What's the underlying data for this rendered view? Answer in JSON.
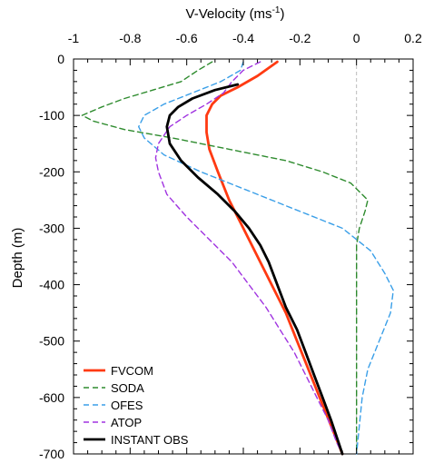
{
  "chart_data": {
    "type": "line",
    "title": "",
    "xlabel": "V-Velocity (ms",
    "xlabel_superscript": "-1",
    "xlabel_suffix": ")",
    "ylabel": "Depth (m)",
    "xlim": [
      -1.0,
      0.2
    ],
    "ylim": [
      -700,
      0
    ],
    "x_axis_position": "top",
    "x_ticks": [
      -1,
      -0.8,
      -0.6,
      -0.4,
      -0.2,
      0,
      0.2
    ],
    "x_tick_labels": [
      "-1",
      "-0.8",
      "-0.6",
      "-0.4",
      "-0.2",
      "0",
      "0.2"
    ],
    "y_ticks": [
      0,
      -100,
      -200,
      -300,
      -400,
      -500,
      -600,
      -700
    ],
    "y_tick_labels": [
      "0",
      "-100",
      "-200",
      "-300",
      "-400",
      "-500",
      "-600",
      "-700"
    ],
    "zero_reference_line": {
      "x": 0,
      "color": "#bbbbbb",
      "dashed": true
    },
    "grid": false,
    "legend_position": "bottom-left",
    "series": [
      {
        "name": "FVCOM",
        "color": "#ff3a12",
        "dashed": false,
        "points": [
          [
            -0.28,
            -5
          ],
          [
            -0.35,
            -30
          ],
          [
            -0.42,
            -50
          ],
          [
            -0.48,
            -65
          ],
          [
            -0.51,
            -80
          ],
          [
            -0.53,
            -100
          ],
          [
            -0.53,
            -130
          ],
          [
            -0.52,
            -160
          ],
          [
            -0.49,
            -200
          ],
          [
            -0.45,
            -250
          ],
          [
            -0.4,
            -300
          ],
          [
            -0.35,
            -350
          ],
          [
            -0.3,
            -400
          ],
          [
            -0.25,
            -450
          ],
          [
            -0.21,
            -500
          ],
          [
            -0.17,
            -550
          ],
          [
            -0.13,
            -600
          ],
          [
            -0.09,
            -650
          ],
          [
            -0.05,
            -700
          ]
        ]
      },
      {
        "name": "SODA",
        "color": "#2e8b2e",
        "dashed": true,
        "points": [
          [
            -0.51,
            -5
          ],
          [
            -0.56,
            -20
          ],
          [
            -0.62,
            -40
          ],
          [
            -0.72,
            -55
          ],
          [
            -0.82,
            -70
          ],
          [
            -0.9,
            -85
          ],
          [
            -0.97,
            -100
          ],
          [
            -0.93,
            -110
          ],
          [
            -0.82,
            -125
          ],
          [
            -0.65,
            -140
          ],
          [
            -0.45,
            -160
          ],
          [
            -0.25,
            -180
          ],
          [
            -0.12,
            -200
          ],
          [
            -0.02,
            -220
          ],
          [
            0.04,
            -250
          ],
          [
            0.03,
            -270
          ],
          [
            0.01,
            -300
          ],
          [
            0.0,
            -330
          ],
          [
            0.0,
            -360
          ],
          [
            0.0,
            -400
          ],
          [
            0.0,
            -500
          ],
          [
            0.0,
            -600
          ],
          [
            0.0,
            -700
          ]
        ]
      },
      {
        "name": "OFES",
        "color": "#3a9fe8",
        "dashed": true,
        "points": [
          [
            -0.4,
            -5
          ],
          [
            -0.41,
            -20
          ],
          [
            -0.48,
            -40
          ],
          [
            -0.58,
            -60
          ],
          [
            -0.68,
            -80
          ],
          [
            -0.75,
            -100
          ],
          [
            -0.77,
            -120
          ],
          [
            -0.75,
            -140
          ],
          [
            -0.68,
            -170
          ],
          [
            -0.55,
            -200
          ],
          [
            -0.4,
            -230
          ],
          [
            -0.25,
            -260
          ],
          [
            -0.05,
            -300
          ],
          [
            0.05,
            -340
          ],
          [
            0.1,
            -380
          ],
          [
            0.13,
            -410
          ],
          [
            0.12,
            -450
          ],
          [
            0.08,
            -500
          ],
          [
            0.04,
            -550
          ],
          [
            0.02,
            -600
          ],
          [
            0.01,
            -650
          ],
          [
            0.0,
            -700
          ]
        ]
      },
      {
        "name": "ATOP",
        "color": "#a033e0",
        "dashed": true,
        "points": [
          [
            -0.34,
            -5
          ],
          [
            -0.4,
            -20
          ],
          [
            -0.44,
            -40
          ],
          [
            -0.47,
            -60
          ],
          [
            -0.53,
            -80
          ],
          [
            -0.6,
            -100
          ],
          [
            -0.66,
            -120
          ],
          [
            -0.7,
            -150
          ],
          [
            -0.71,
            -175
          ],
          [
            -0.7,
            -200
          ],
          [
            -0.67,
            -240
          ],
          [
            -0.6,
            -280
          ],
          [
            -0.52,
            -320
          ],
          [
            -0.44,
            -360
          ],
          [
            -0.38,
            -400
          ],
          [
            -0.32,
            -440
          ],
          [
            -0.27,
            -480
          ],
          [
            -0.22,
            -520
          ],
          [
            -0.18,
            -560
          ],
          [
            -0.14,
            -600
          ],
          [
            -0.1,
            -640
          ],
          [
            -0.07,
            -680
          ],
          [
            -0.05,
            -700
          ]
        ]
      },
      {
        "name": "INSTANT OBS",
        "color": "#000000",
        "dashed": false,
        "points": [
          [
            -0.42,
            -45
          ],
          [
            -0.5,
            -55
          ],
          [
            -0.58,
            -70
          ],
          [
            -0.63,
            -85
          ],
          [
            -0.66,
            -100
          ],
          [
            -0.67,
            -120
          ],
          [
            -0.66,
            -150
          ],
          [
            -0.62,
            -180
          ],
          [
            -0.56,
            -210
          ],
          [
            -0.49,
            -240
          ],
          [
            -0.43,
            -270
          ],
          [
            -0.38,
            -300
          ],
          [
            -0.34,
            -330
          ],
          [
            -0.31,
            -360
          ],
          [
            -0.28,
            -400
          ],
          [
            -0.25,
            -440
          ],
          [
            -0.21,
            -480
          ],
          [
            -0.18,
            -520
          ],
          [
            -0.15,
            -560
          ],
          [
            -0.12,
            -600
          ],
          [
            -0.09,
            -640
          ],
          [
            -0.07,
            -670
          ],
          [
            -0.05,
            -700
          ]
        ]
      }
    ]
  }
}
